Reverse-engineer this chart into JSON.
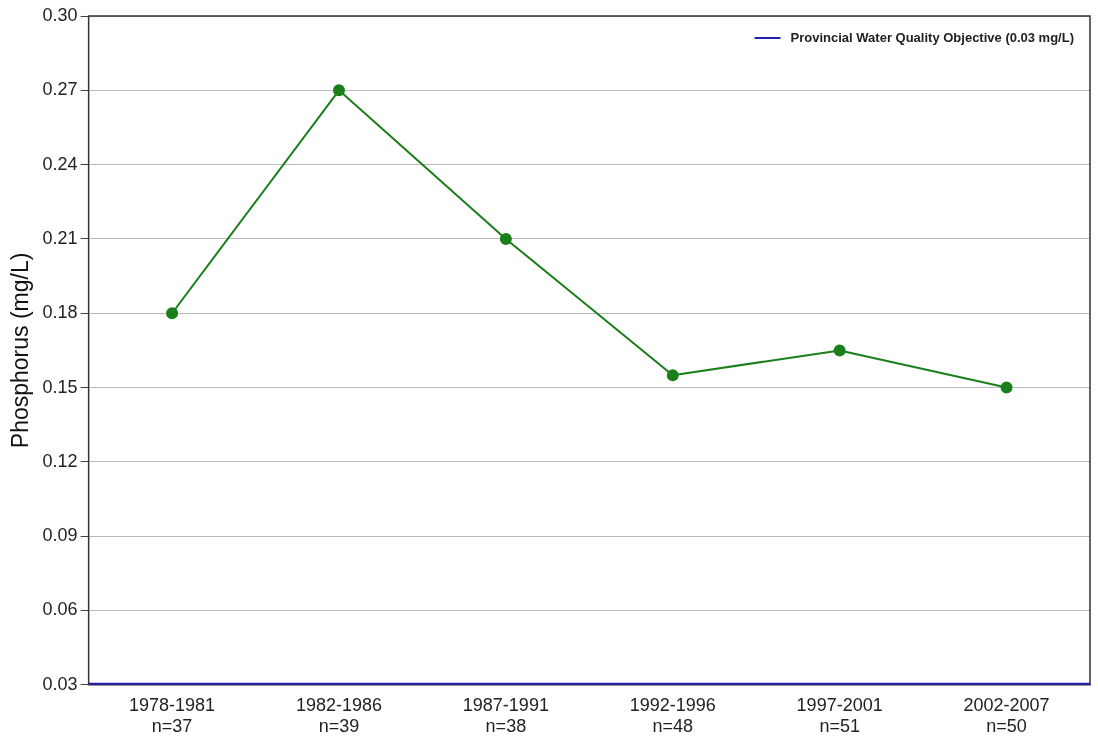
{
  "chart_data": {
    "type": "line",
    "ylabel": "Phosphorus (mg/L)",
    "categories": [
      "1978-1981\nn=37",
      "1982-1986\nn=39",
      "1987-1991\nn=38",
      "1992-1996\nn=48",
      "1997-2001\nn=51",
      "2002-2007\nn=50"
    ],
    "series": [
      {
        "color": "#1a7f1a",
        "values": [
          0.18,
          0.27,
          0.21,
          0.155,
          0.165,
          0.15
        ]
      }
    ],
    "ylim": [
      0.03,
      0.3
    ],
    "yticks": [
      0.03,
      0.06,
      0.09,
      0.12,
      0.15,
      0.18,
      0.21,
      0.24,
      0.27,
      {
        "value": 0.3,
        "label": "0.30"
      }
    ],
    "ref_lines": [
      {
        "axis": "y",
        "value": 0.03,
        "label": "Provincial Water Quality Objective (0.03 mg/L)",
        "color": "#2020b0"
      }
    ],
    "grid": "y",
    "legend": "top right",
    "marker": "circle",
    "line_style": "solid"
  }
}
